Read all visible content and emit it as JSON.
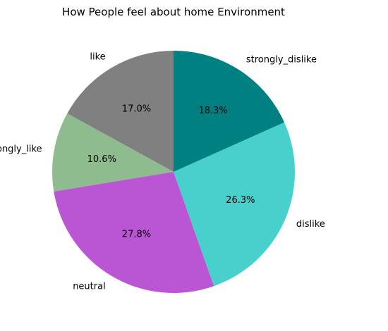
{
  "chart_data": {
    "type": "pie",
    "title": "How People feel about home Environment",
    "start_angle_deg": 90,
    "direction": "counterclockwise",
    "slices": [
      {
        "label": "like",
        "value": 17.0,
        "pct_label": "17.0%",
        "color": "#808080"
      },
      {
        "label": "strongly_like",
        "value": 10.6,
        "pct_label": "10.6%",
        "color": "#8FBC8F"
      },
      {
        "label": "neutral",
        "value": 27.8,
        "pct_label": "27.8%",
        "color": "#BA55D3"
      },
      {
        "label": "dislike",
        "value": 26.3,
        "pct_label": "26.3%",
        "color": "#48D1CC"
      },
      {
        "label": "strongly_dislike",
        "value": 18.3,
        "pct_label": "18.3%",
        "color": "#008080"
      }
    ]
  }
}
